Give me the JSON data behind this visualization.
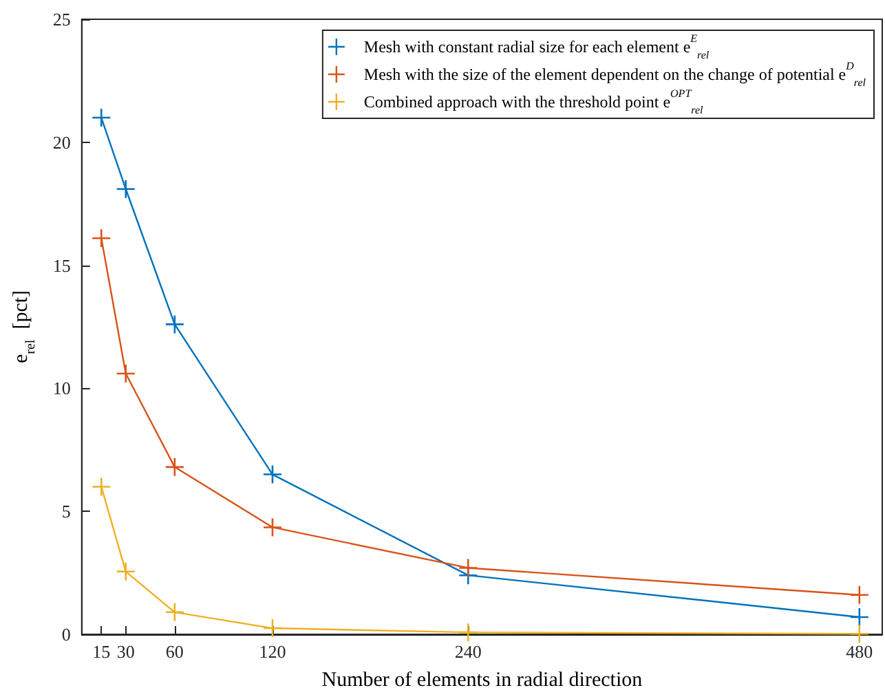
{
  "chart_data": {
    "type": "line",
    "xlabel": "Number of elements in radial direction",
    "ylabel": "e$_{rel}$  [pct]",
    "x": [
      15,
      30,
      60,
      120,
      240,
      480
    ],
    "series": [
      {
        "name": "Mesh with constant radial size for each element e$^{E}$$_{rel}$",
        "color": "#0072bd",
        "values": [
          21,
          18.1,
          12.6,
          6.5,
          2.4,
          0.7
        ]
      },
      {
        "name": "Mesh with the size of the element dependent on the change of potential e$^{D}$$_{rel}$",
        "color": "#d95319",
        "values": [
          16.1,
          10.6,
          6.8,
          4.35,
          2.7,
          1.6
        ]
      },
      {
        "name": "Combined approach with the threshold point e$^{OPT}$$_{rel}$",
        "color": "#edb120",
        "values": [
          6,
          2.55,
          0.9,
          0.25,
          0.08,
          0.02
        ]
      }
    ],
    "xlim": [
      3,
      494
    ],
    "xticks": [
      15,
      30,
      60,
      120,
      240,
      480
    ],
    "ylim": [
      0,
      25
    ],
    "yticks": [
      0,
      5,
      10,
      15,
      20,
      25
    ],
    "grid": false,
    "legend": "top right",
    "marker": "cross",
    "line_style": "solid"
  }
}
